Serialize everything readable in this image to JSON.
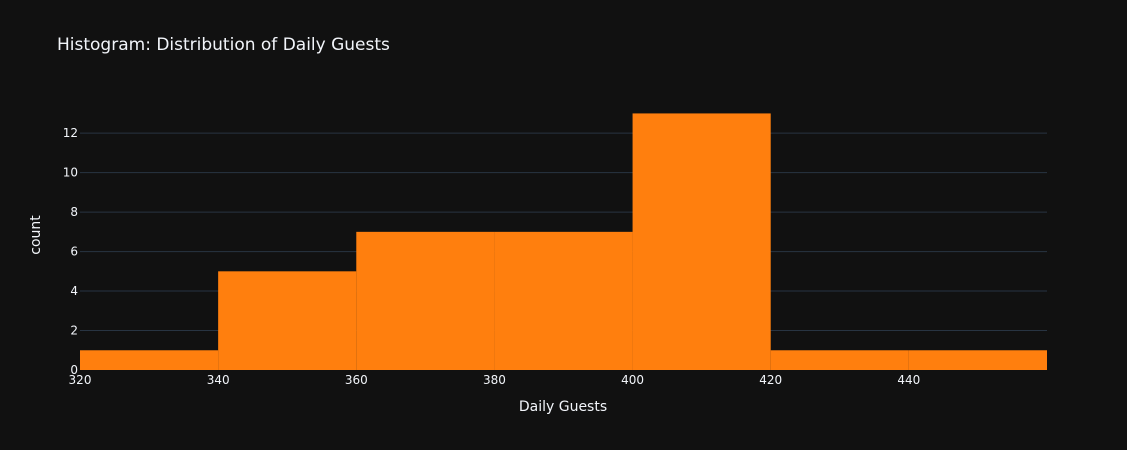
{
  "chart_data": {
    "type": "bar",
    "subtype": "histogram",
    "title": "Histogram: Distribution of Daily Guests",
    "xlabel": "Daily Guests",
    "ylabel": "count",
    "bins": [
      {
        "start": 320,
        "end": 340,
        "count": 1
      },
      {
        "start": 340,
        "end": 360,
        "count": 5
      },
      {
        "start": 360,
        "end": 380,
        "count": 7
      },
      {
        "start": 380,
        "end": 400,
        "count": 7
      },
      {
        "start": 400,
        "end": 420,
        "count": 13
      },
      {
        "start": 420,
        "end": 440,
        "count": 1
      },
      {
        "start": 440,
        "end": 460,
        "count": 1
      }
    ],
    "xlim": [
      320,
      460
    ],
    "ylim": [
      0,
      13.68
    ],
    "xticks": [
      320,
      340,
      360,
      380,
      400,
      420,
      440
    ],
    "yticks": [
      0,
      2,
      4,
      6,
      8,
      10,
      12
    ],
    "grid": true,
    "colors": {
      "bar": "#ff7f0e",
      "background": "#111111",
      "grid": "#283442",
      "text": "#f2f5fa"
    }
  }
}
